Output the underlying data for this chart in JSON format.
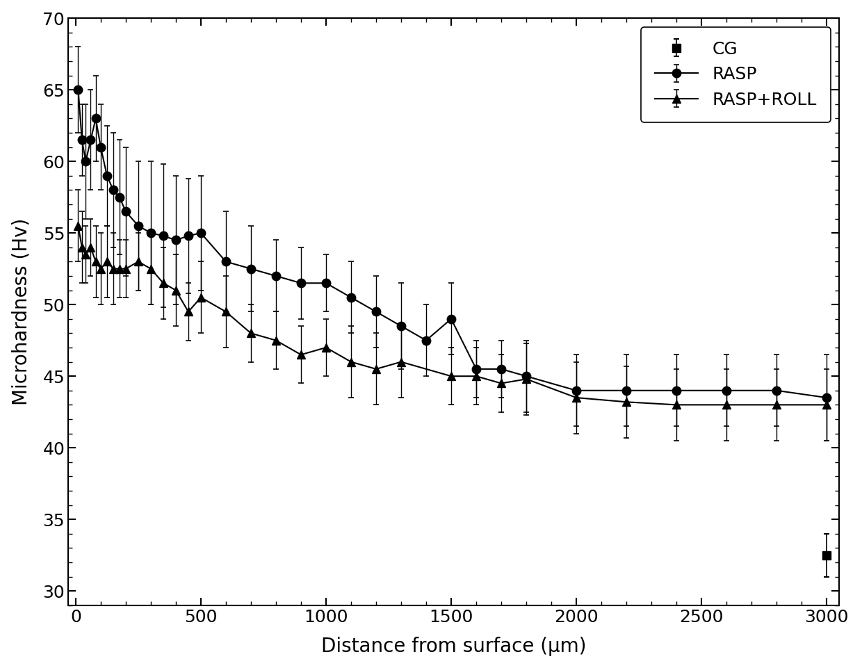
{
  "xlabel": "Distance from surface (μm)",
  "ylabel": "Microhardness (Hv)",
  "xlim": [
    -30,
    3050
  ],
  "ylim": [
    29,
    70
  ],
  "yticks": [
    30,
    35,
    40,
    45,
    50,
    55,
    60,
    65,
    70
  ],
  "xticks": [
    0,
    500,
    1000,
    1500,
    2000,
    2500,
    3000
  ],
  "background_color": "#ffffff",
  "line_color": "#000000",
  "CG": {
    "x": [
      3000
    ],
    "y": [
      32.5
    ],
    "yerr": [
      1.5
    ],
    "label": "CG",
    "marker": "s",
    "markersize": 9
  },
  "RASP": {
    "x": [
      10,
      25,
      40,
      60,
      80,
      100,
      125,
      150,
      175,
      200,
      250,
      300,
      350,
      400,
      450,
      500,
      600,
      700,
      800,
      900,
      1000,
      1100,
      1200,
      1300,
      1400,
      1500,
      1600,
      1700,
      1800,
      2000,
      2200,
      2400,
      2600,
      2800,
      3000
    ],
    "y": [
      65.0,
      61.5,
      60.0,
      61.5,
      63.0,
      61.0,
      59.0,
      58.0,
      57.5,
      56.5,
      55.5,
      55.0,
      54.8,
      54.5,
      54.8,
      55.0,
      53.0,
      52.5,
      52.0,
      51.5,
      51.5,
      50.5,
      49.5,
      48.5,
      47.5,
      49.0,
      45.5,
      45.5,
      45.0,
      44.0,
      44.0,
      44.0,
      44.0,
      44.0,
      43.5
    ],
    "yerr": [
      3.0,
      2.5,
      4.0,
      3.5,
      3.0,
      3.0,
      3.5,
      4.0,
      4.0,
      4.5,
      4.5,
      5.0,
      5.0,
      4.5,
      4.0,
      4.0,
      3.5,
      3.0,
      2.5,
      2.5,
      2.0,
      2.5,
      2.5,
      3.0,
      2.5,
      2.5,
      2.0,
      2.0,
      2.5,
      2.5,
      2.5,
      2.5,
      2.5,
      2.5,
      3.0
    ],
    "label": "RASP",
    "marker": "o",
    "markersize": 9
  },
  "RASP_ROLL": {
    "x": [
      10,
      25,
      40,
      60,
      80,
      100,
      125,
      150,
      175,
      200,
      250,
      300,
      350,
      400,
      450,
      500,
      600,
      700,
      800,
      900,
      1000,
      1100,
      1200,
      1300,
      1500,
      1600,
      1700,
      1800,
      2000,
      2200,
      2400,
      2600,
      2800,
      3000
    ],
    "y": [
      55.5,
      54.0,
      53.5,
      54.0,
      53.0,
      52.5,
      53.0,
      52.5,
      52.5,
      52.5,
      53.0,
      52.5,
      51.5,
      51.0,
      49.5,
      50.5,
      49.5,
      48.0,
      47.5,
      46.5,
      47.0,
      46.0,
      45.5,
      46.0,
      45.0,
      45.0,
      44.5,
      44.8,
      43.5,
      43.2,
      43.0,
      43.0,
      43.0,
      43.0
    ],
    "yerr": [
      2.5,
      2.5,
      2.0,
      2.0,
      2.5,
      2.5,
      2.5,
      2.5,
      2.0,
      2.0,
      2.0,
      2.5,
      2.5,
      2.5,
      2.0,
      2.5,
      2.5,
      2.0,
      2.0,
      2.0,
      2.0,
      2.5,
      2.5,
      2.5,
      2.0,
      2.0,
      2.0,
      2.5,
      2.5,
      2.5,
      2.5,
      2.5,
      2.5,
      2.5
    ],
    "label": "RASP+ROLL",
    "marker": "^",
    "markersize": 9
  }
}
